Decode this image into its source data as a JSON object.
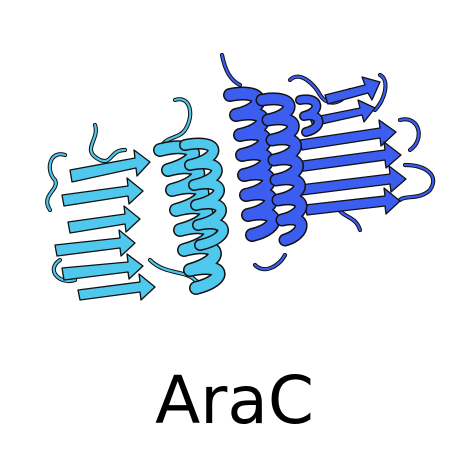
{
  "protein": {
    "name": "AraC",
    "chain_a_color": "#4fc8ee",
    "chain_b_color": "#3c5ef0",
    "outline_color": "#111111",
    "background_color": "#ffffff"
  }
}
